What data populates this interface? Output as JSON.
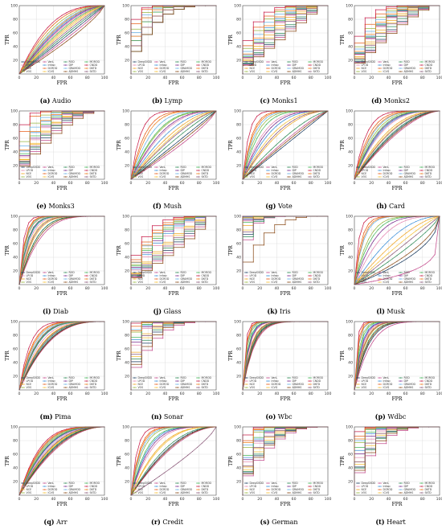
{
  "chart_data": {
    "type": "line",
    "xlabel": "FPR",
    "ylabel": "TPR",
    "xlim": [
      0,
      100
    ],
    "ylim": [
      0,
      100
    ],
    "x_ticks": [
      0,
      20,
      40,
      60,
      80,
      100
    ],
    "y_ticks": [
      20,
      40,
      60,
      80,
      100
    ],
    "grid": true,
    "legend_placement": "lower-right",
    "legend": [
      "DeepSVDD",
      "LPOD",
      "NCE",
      "VOS",
      "VanL",
      "Infosc",
      "DCROD",
      "ICVO",
      "ROD",
      "DIP",
      "GRAMOD",
      "ADMHS",
      "MOROD",
      "CNDD",
      "DKTD",
      "SKTD"
    ],
    "colors": [
      "#1f3f63",
      "#e58bb4",
      "#f0a92b",
      "#98b843",
      "#c44c8d",
      "#3b8fd8",
      "#e8601c",
      "#f5c038",
      "#2e8b57",
      "#7b2d8e",
      "#6ab2e7",
      "#8c4e1c",
      "#46b75a",
      "#c81e4a",
      "#f07f1e",
      "#8b5a7a"
    ],
    "panels": [
      {
        "letter": "a",
        "name": "Audio",
        "kind": "smooth",
        "strength": [
          1.0,
          1.6,
          1.4,
          2.2,
          0.9,
          1.8,
          2.5,
          1.3,
          1.1,
          1.7,
          2.0,
          0.8,
          1.5,
          2.8,
          1.9,
          1.2
        ]
      },
      {
        "letter": "b",
        "name": "Lymp",
        "kind": "step",
        "strength": [
          3.0,
          5.0,
          4.0,
          8.0,
          3.0,
          6.0,
          10.0,
          4.0,
          3.0,
          5.0,
          7.0,
          3.0,
          5.0,
          12.0,
          6.0,
          4.0
        ]
      },
      {
        "letter": "c",
        "name": "Monks1",
        "kind": "step",
        "strength": [
          1.2,
          2.0,
          1.8,
          3.5,
          1.1,
          2.4,
          4.0,
          1.6,
          1.3,
          2.1,
          3.0,
          1.0,
          2.2,
          5.0,
          2.6,
          1.5
        ]
      },
      {
        "letter": "d",
        "name": "Monks2",
        "kind": "step",
        "strength": [
          1.5,
          2.5,
          2.2,
          3.8,
          1.4,
          2.8,
          4.5,
          2.0,
          1.7,
          2.6,
          3.4,
          1.3,
          2.7,
          6.0,
          3.0,
          1.9
        ]
      },
      {
        "letter": "e",
        "name": "Monks3",
        "kind": "step",
        "strength": [
          2.0,
          3.0,
          2.5,
          6.0,
          1.8,
          4.0,
          9.0,
          2.6,
          2.2,
          3.2,
          5.0,
          1.6,
          3.5,
          12.0,
          4.2,
          2.3
        ]
      },
      {
        "letter": "f",
        "name": "Mush",
        "kind": "smooth",
        "strength": [
          1.0,
          2.4,
          1.7,
          3.0,
          0.8,
          2.0,
          6.0,
          1.5,
          1.2,
          2.6,
          4.0,
          0.9,
          3.2,
          9.0,
          5.0,
          1.4
        ]
      },
      {
        "letter": "g",
        "name": "Vote",
        "kind": "smooth",
        "strength": [
          1.0,
          4.0,
          2.0,
          6.0,
          1.2,
          3.0,
          9.0,
          2.5,
          1.4,
          3.5,
          7.0,
          1.1,
          5.0,
          14.0,
          8.0,
          2.2
        ]
      },
      {
        "letter": "h",
        "name": "Card",
        "kind": "smooth",
        "strength": [
          1.8,
          3.0,
          2.4,
          4.0,
          1.6,
          3.2,
          5.5,
          2.2,
          1.9,
          3.4,
          4.5,
          1.7,
          3.6,
          7.0,
          4.8,
          2.1
        ]
      },
      {
        "letter": "i",
        "name": "Diab",
        "kind": "smooth",
        "strength": [
          5.0,
          8.0,
          6.0,
          12.0,
          4.0,
          9.0,
          15.0,
          7.0,
          5.0,
          10.0,
          13.0,
          4.5,
          9.5,
          20.0,
          14.0,
          6.5
        ]
      },
      {
        "letter": "j",
        "name": "Glass",
        "kind": "step",
        "strength": [
          1.0,
          1.8,
          1.4,
          2.6,
          0.9,
          2.0,
          3.4,
          1.3,
          1.1,
          2.2,
          2.9,
          0.8,
          2.4,
          4.2,
          3.0,
          1.2
        ]
      },
      {
        "letter": "k",
        "name": "Iris",
        "kind": "step",
        "strength": [
          10.0,
          20.0,
          15.0,
          30.0,
          8.0,
          25.0,
          40.0,
          12.0,
          9.0,
          22.0,
          35.0,
          3.0,
          18.0,
          50.0,
          28.0,
          11.0
        ]
      },
      {
        "letter": "l",
        "name": "Musk",
        "kind": "smooth",
        "strength": [
          0.5,
          3.0,
          1.5,
          6.0,
          0.2,
          2.0,
          12.0,
          1.2,
          0.8,
          4.0,
          9.0,
          0.6,
          5.0,
          20.0,
          10.0,
          1.0
        ]
      },
      {
        "letter": "m",
        "name": "Pima",
        "kind": "smooth",
        "strength": [
          3.0,
          4.0,
          3.5,
          5.0,
          2.8,
          4.5,
          6.5,
          3.6,
          3.2,
          4.8,
          5.5,
          2.9,
          4.6,
          8.0,
          6.0,
          3.4
        ]
      },
      {
        "letter": "n",
        "name": "Sonar",
        "kind": "step",
        "strength": [
          4.0,
          8.0,
          6.0,
          14.0,
          3.0,
          10.0,
          20.0,
          5.0,
          4.5,
          9.0,
          16.0,
          3.5,
          11.0,
          28.0,
          15.0,
          5.5
        ]
      },
      {
        "letter": "o",
        "name": "Wbc",
        "kind": "smooth",
        "strength": [
          8.0,
          12.0,
          10.0,
          18.0,
          7.0,
          14.0,
          24.0,
          9.0,
          8.5,
          13.0,
          20.0,
          7.5,
          15.0,
          30.0,
          22.0,
          9.5
        ]
      },
      {
        "letter": "p",
        "name": "Wdbc",
        "kind": "smooth",
        "strength": [
          6.0,
          10.0,
          9.0,
          16.0,
          5.0,
          12.0,
          26.0,
          8.0,
          7.0,
          11.0,
          20.0,
          6.5,
          14.0,
          34.0,
          22.0,
          8.5
        ]
      },
      {
        "letter": "q",
        "name": "Arr",
        "kind": "smooth",
        "strength": [
          2.2,
          2.8,
          2.5,
          3.4,
          2.0,
          3.0,
          3.9,
          2.4,
          2.3,
          3.1,
          3.6,
          2.1,
          3.2,
          4.2,
          3.7,
          2.6
        ]
      },
      {
        "letter": "r",
        "name": "Credit",
        "kind": "smooth",
        "strength": [
          2.0,
          4.0,
          3.0,
          7.0,
          1.8,
          5.0,
          10.0,
          2.8,
          2.2,
          4.5,
          8.0,
          1.9,
          5.5,
          14.0,
          9.0,
          0.8
        ]
      },
      {
        "letter": "s",
        "name": "German",
        "kind": "step",
        "strength": [
          3.0,
          5.0,
          4.0,
          9.0,
          2.5,
          6.0,
          12.0,
          3.5,
          3.2,
          5.5,
          10.0,
          2.8,
          6.5,
          16.0,
          11.0,
          4.2
        ]
      },
      {
        "letter": "t",
        "name": "Heart",
        "kind": "step",
        "strength": [
          4.0,
          6.0,
          5.0,
          11.0,
          3.0,
          8.0,
          15.0,
          4.5,
          3.8,
          7.0,
          12.0,
          3.4,
          9.0,
          20.0,
          13.0,
          5.0
        ]
      }
    ]
  }
}
